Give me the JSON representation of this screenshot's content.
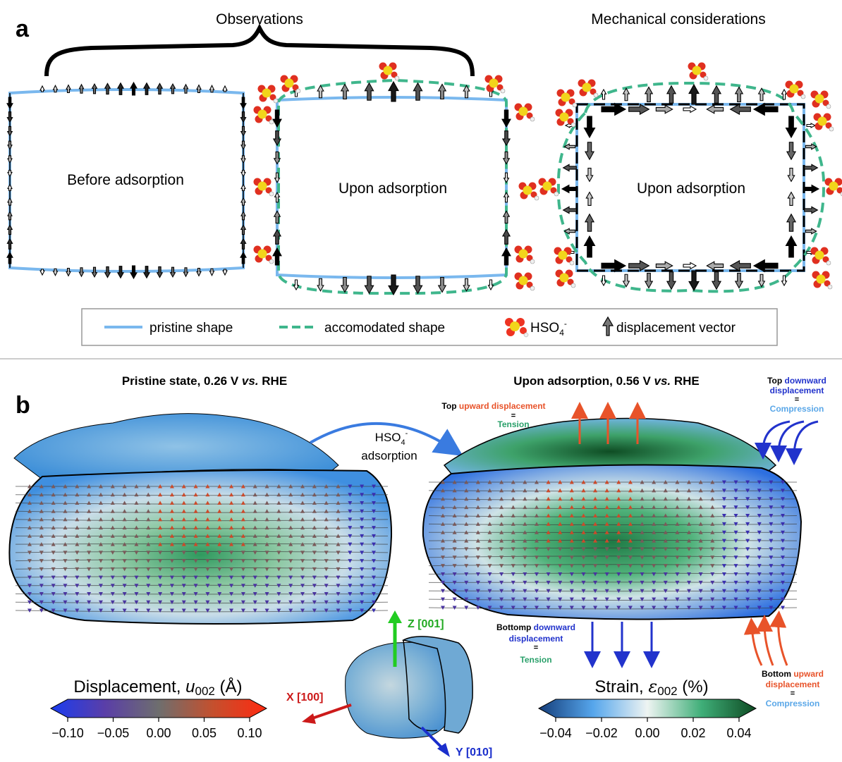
{
  "panel_a": {
    "label": "a",
    "observations_title": "Observations",
    "mechanical_title": "Mechanical considerations",
    "box1_text": "Before adsorption",
    "box2_text": "Upon adsorption",
    "box3_text": "Upon adsorption",
    "legend": {
      "pristine": "pristine shape",
      "accomodated": "accomodated shape",
      "hso4_base": "HSO",
      "hso4_sub": "4",
      "hso4_sup": "-",
      "displacement": "displacement vector"
    },
    "colors": {
      "pristine": "#7ab8ee",
      "accomodated": "#3fb68c"
    }
  },
  "panel_b": {
    "label": "b",
    "left_title_pre": "Pristine state, 0.26 V ",
    "left_title_it": "vs.",
    "left_title_post": " RHE",
    "right_title_pre": "Upon adsorption, 0.56 V ",
    "right_title_it": "vs.",
    "right_title_post": " RHE",
    "arrow_label_base": "HSO",
    "arrow_label_sub": "4",
    "arrow_label_sup": "-",
    "arrow_label_line2": "adsorption",
    "top_up": {
      "pre": "Top ",
      "colored": "upward displacement",
      "eq": "=",
      "result": "Tension"
    },
    "top_down": {
      "pre": "Top ",
      "colored1": "downward",
      "colored2": "displacement",
      "eq": "=",
      "result": "Compression"
    },
    "bottom_down": {
      "pre": "Bottomp ",
      "colored1": "downward",
      "colored2": "displacement",
      "eq": "=",
      "result": "Tension"
    },
    "bottom_up": {
      "pre": "Bottom ",
      "colored1": "upward",
      "colored2": "displacement",
      "eq": "=",
      "result": "Compression"
    },
    "axes": {
      "z": "Z [001]",
      "x": "X [100]",
      "y": "Y [010]"
    },
    "displacement_colorbar": {
      "label_pre": "Displacement, ",
      "label_var": "u",
      "label_sub": "002",
      "label_unit": " (Å)",
      "ticks": [
        "−0.10",
        "−0.05",
        "0.00",
        "0.05",
        "0.10"
      ]
    },
    "strain_colorbar": {
      "label_pre": "Strain, ",
      "label_var": "ε",
      "label_sub": "002",
      "label_unit": " (%)",
      "ticks": [
        "−0.04",
        "−0.02",
        "0.00",
        "0.02",
        "0.04"
      ]
    },
    "colors": {
      "tension": "#2aa06a",
      "compression": "#5aa7e8",
      "upward": "#e8532a",
      "downward": "#2233cc"
    }
  }
}
